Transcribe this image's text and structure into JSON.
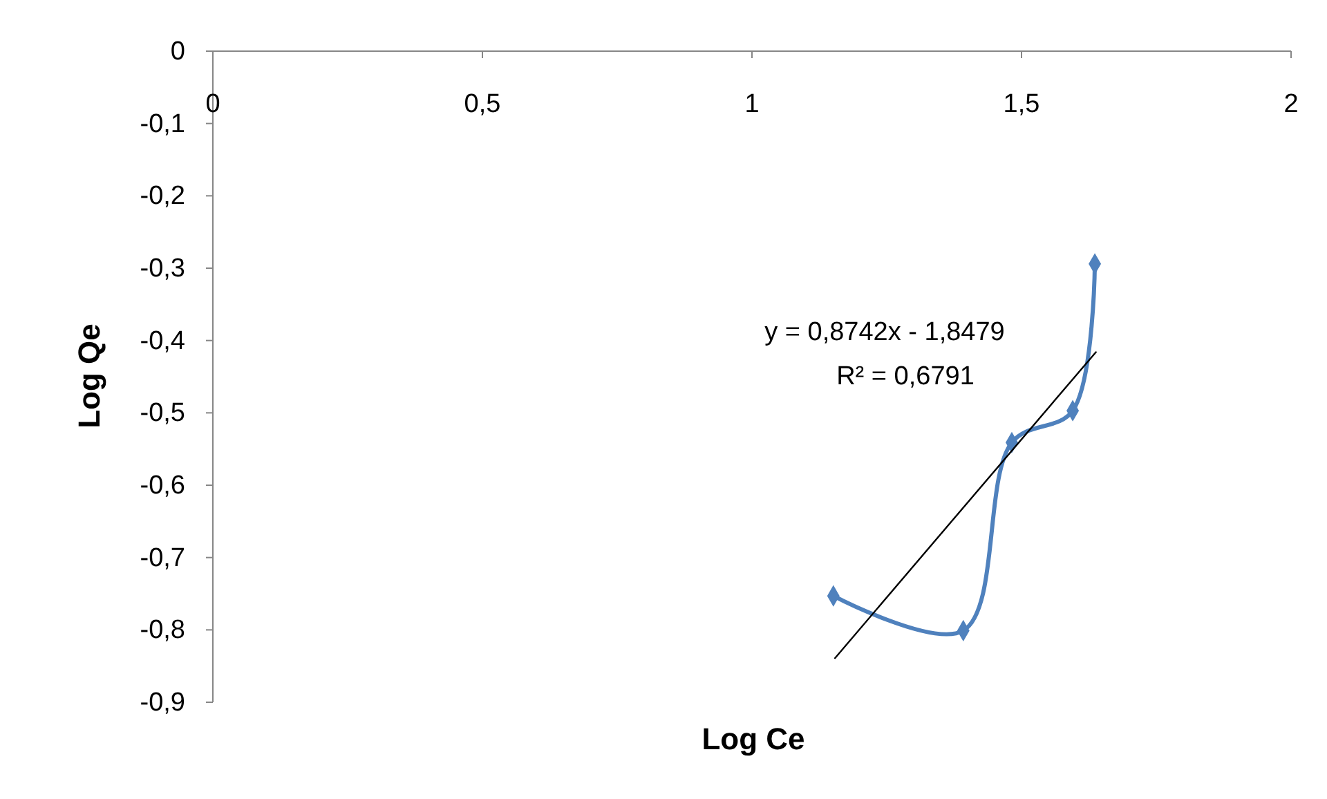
{
  "chart_data": {
    "type": "line",
    "xlabel": "Log Ce",
    "ylabel": "Log Qe",
    "xlim": [
      0,
      2
    ],
    "ylim": [
      -0.9,
      0
    ],
    "xticks": [
      0,
      {
        "value": 0.5,
        "label": "0,5"
      },
      1,
      {
        "value": 1.5,
        "label": "1,5"
      },
      2
    ],
    "yticks": [
      {
        "value": 0,
        "label": "0"
      },
      {
        "value": -0.1,
        "label": "-0,1"
      },
      {
        "value": -0.2,
        "label": "-0,2"
      },
      {
        "value": -0.3,
        "label": "-0,3"
      },
      {
        "value": -0.4,
        "label": "-0,4"
      },
      {
        "value": -0.5,
        "label": "-0,5"
      },
      {
        "value": -0.6,
        "label": "-0,6"
      },
      {
        "value": -0.7,
        "label": "-0,7"
      },
      {
        "value": -0.8,
        "label": "-0,8"
      },
      {
        "value": -0.9,
        "label": "-0,9"
      }
    ],
    "series": [
      {
        "color": "#4f81bd",
        "x": [
          1.151,
          1.392,
          1.482,
          1.595,
          1.636
        ],
        "values": [
          -0.753,
          -0.801,
          -0.541,
          -0.497,
          -0.294
        ],
        "marker": "diamond"
      },
      {
        "color": "#000000",
        "x": [
          1.154,
          1.638
        ],
        "values": [
          -0.839,
          -0.416
        ],
        "marker": "none"
      }
    ],
    "annotations": [
      "y = 0,8742x - 1,8479",
      "R² = 0,6791"
    ]
  }
}
